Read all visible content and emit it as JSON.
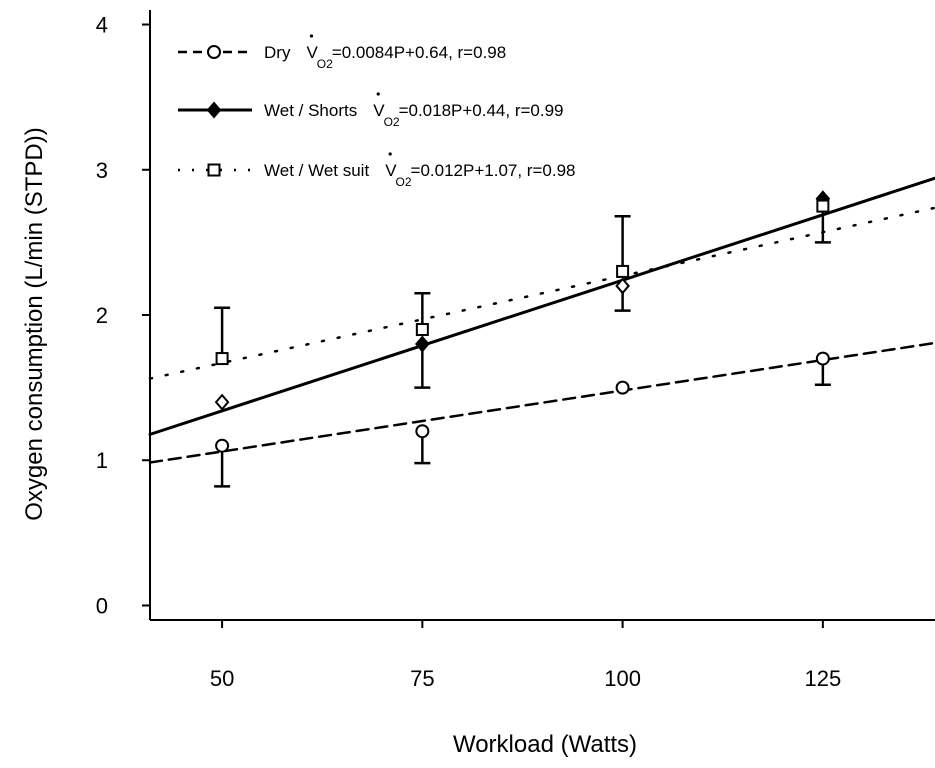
{
  "chart_data": {
    "type": "scatter",
    "xlabel": "Workload (Watts)",
    "ylabel": "Oxygen consumption (L/min (STPD))",
    "xlim": [
      41,
      139
    ],
    "ylim": [
      -0.1,
      4.1
    ],
    "x_ticks": [
      "50",
      "75",
      "100",
      "125"
    ],
    "y_ticks": [
      "0",
      "1",
      "2",
      "3",
      "4"
    ],
    "grid": false,
    "legend_position": "top-left",
    "series": [
      {
        "name": "Dry",
        "marker": "circle",
        "line_style": "dashed",
        "equation_prefix": "V",
        "equation_subscript": "O2",
        "equation_rest": "=0.0084P+0.64, r=0.98",
        "fit": {
          "slope": 0.0084,
          "intercept": 0.64
        },
        "points": [
          {
            "x": 50,
            "y": 1.1,
            "err_low": 0.28,
            "err_high": 0.0
          },
          {
            "x": 75,
            "y": 1.2,
            "err_low": 0.22,
            "err_high": 0.0
          },
          {
            "x": 100,
            "y": 1.5,
            "err_low": 0.0,
            "err_high": 0.0
          },
          {
            "x": 125,
            "y": 1.7,
            "err_low": 0.18,
            "err_high": 0.0
          }
        ]
      },
      {
        "name": "Wet / Shorts",
        "marker": "diamond",
        "line_style": "solid",
        "equation_prefix": "V",
        "equation_subscript": "O2",
        "equation_rest": "=0.018P+0.44, r=0.99",
        "fit": {
          "slope": 0.018,
          "intercept": 0.44
        },
        "points": [
          {
            "x": 50,
            "y": 1.4
          },
          {
            "x": 75,
            "y": 1.8,
            "err_low": 0.3,
            "err_high": 0.0
          },
          {
            "x": 100,
            "y": 2.2,
            "err_low": 0.17,
            "err_high": 0.0
          },
          {
            "x": 125,
            "y": 2.8,
            "err_low": 0.3,
            "err_high": 0.0
          }
        ]
      },
      {
        "name": "Wet / Wet suit",
        "marker": "square",
        "line_style": "dotted",
        "equation_prefix": "V",
        "equation_subscript": "O2",
        "equation_rest": "=0.012P+1.07, r=0.98",
        "fit": {
          "slope": 0.012,
          "intercept": 1.07
        },
        "points": [
          {
            "x": 50,
            "y": 1.7,
            "err_low": 0.0,
            "err_high": 0.35
          },
          {
            "x": 75,
            "y": 1.9,
            "err_low": 0.0,
            "err_high": 0.25
          },
          {
            "x": 100,
            "y": 2.3,
            "err_low": 0.0,
            "err_high": 0.38
          },
          {
            "x": 125,
            "y": 2.75
          }
        ]
      }
    ]
  }
}
